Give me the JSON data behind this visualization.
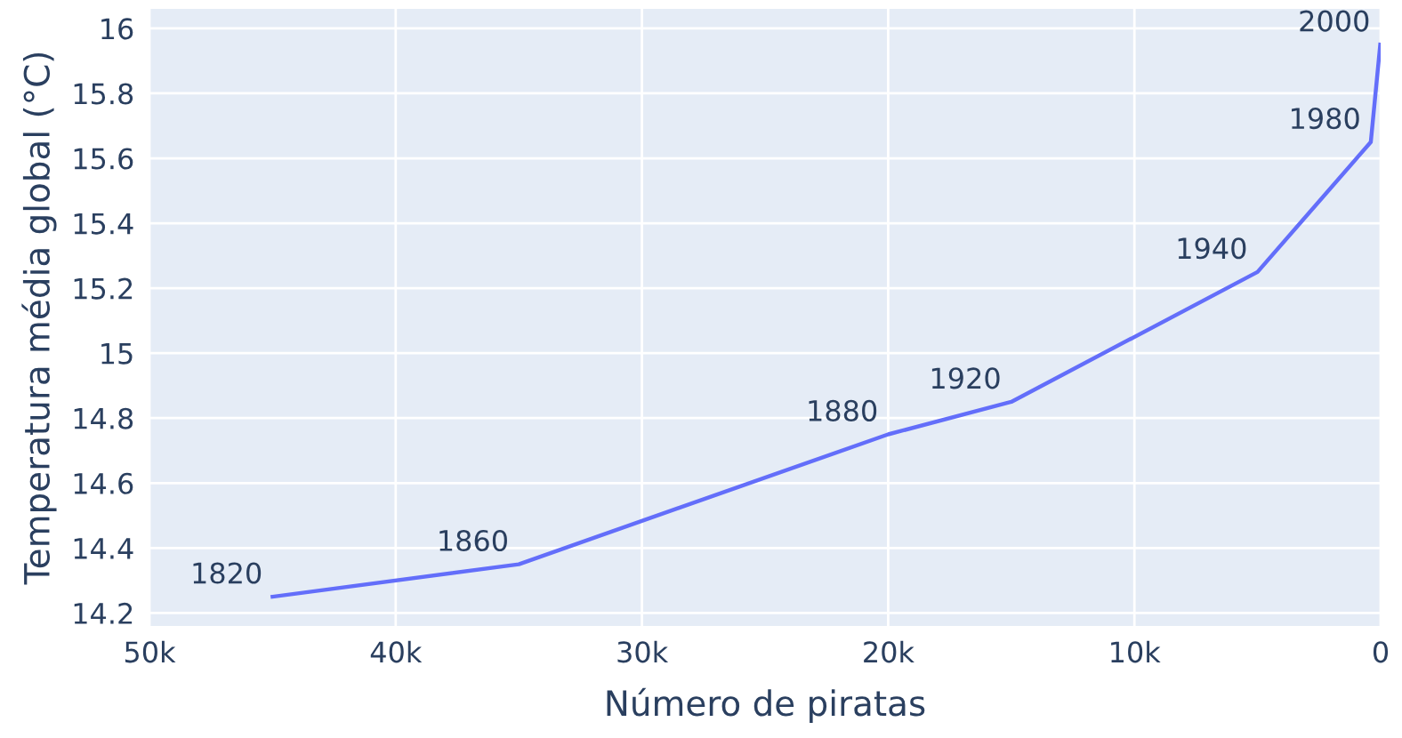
{
  "chart_data": {
    "type": "line",
    "xlabel": "Número de piratas",
    "ylabel": "Temperatura média global (°C)",
    "x": [
      45000,
      35000,
      20000,
      15000,
      5000,
      400,
      17
    ],
    "series": [
      {
        "color": "#636efa",
        "values": [
          14.25,
          14.35,
          14.75,
          14.85,
          15.25,
          15.65,
          15.95
        ]
      }
    ],
    "annotations": [
      {
        "text": "1820",
        "x": 45000,
        "y": 14.25
      },
      {
        "text": "1860",
        "x": 35000,
        "y": 14.35
      },
      {
        "text": "1880",
        "x": 20000,
        "y": 14.75
      },
      {
        "text": "1920",
        "x": 15000,
        "y": 14.85
      },
      {
        "text": "1940",
        "x": 5000,
        "y": 15.25
      },
      {
        "text": "1980",
        "x": 400,
        "y": 15.65
      },
      {
        "text": "2000",
        "x": 17,
        "y": 15.95
      }
    ],
    "xlim": [
      50000,
      0
    ],
    "ylim": [
      14.16,
      16.06
    ],
    "xticks": [
      {
        "value": 50000,
        "label": "50k"
      },
      {
        "value": 40000,
        "label": "40k"
      },
      {
        "value": 30000,
        "label": "30k"
      },
      {
        "value": 20000,
        "label": "20k"
      },
      {
        "value": 10000,
        "label": "10k"
      },
      0
    ],
    "yticks": [
      14.2,
      14.4,
      14.6,
      14.8,
      15,
      15.2,
      15.4,
      15.6,
      15.8,
      16
    ],
    "grid": true,
    "marker": "none",
    "line_style": "solid",
    "legend": false
  }
}
